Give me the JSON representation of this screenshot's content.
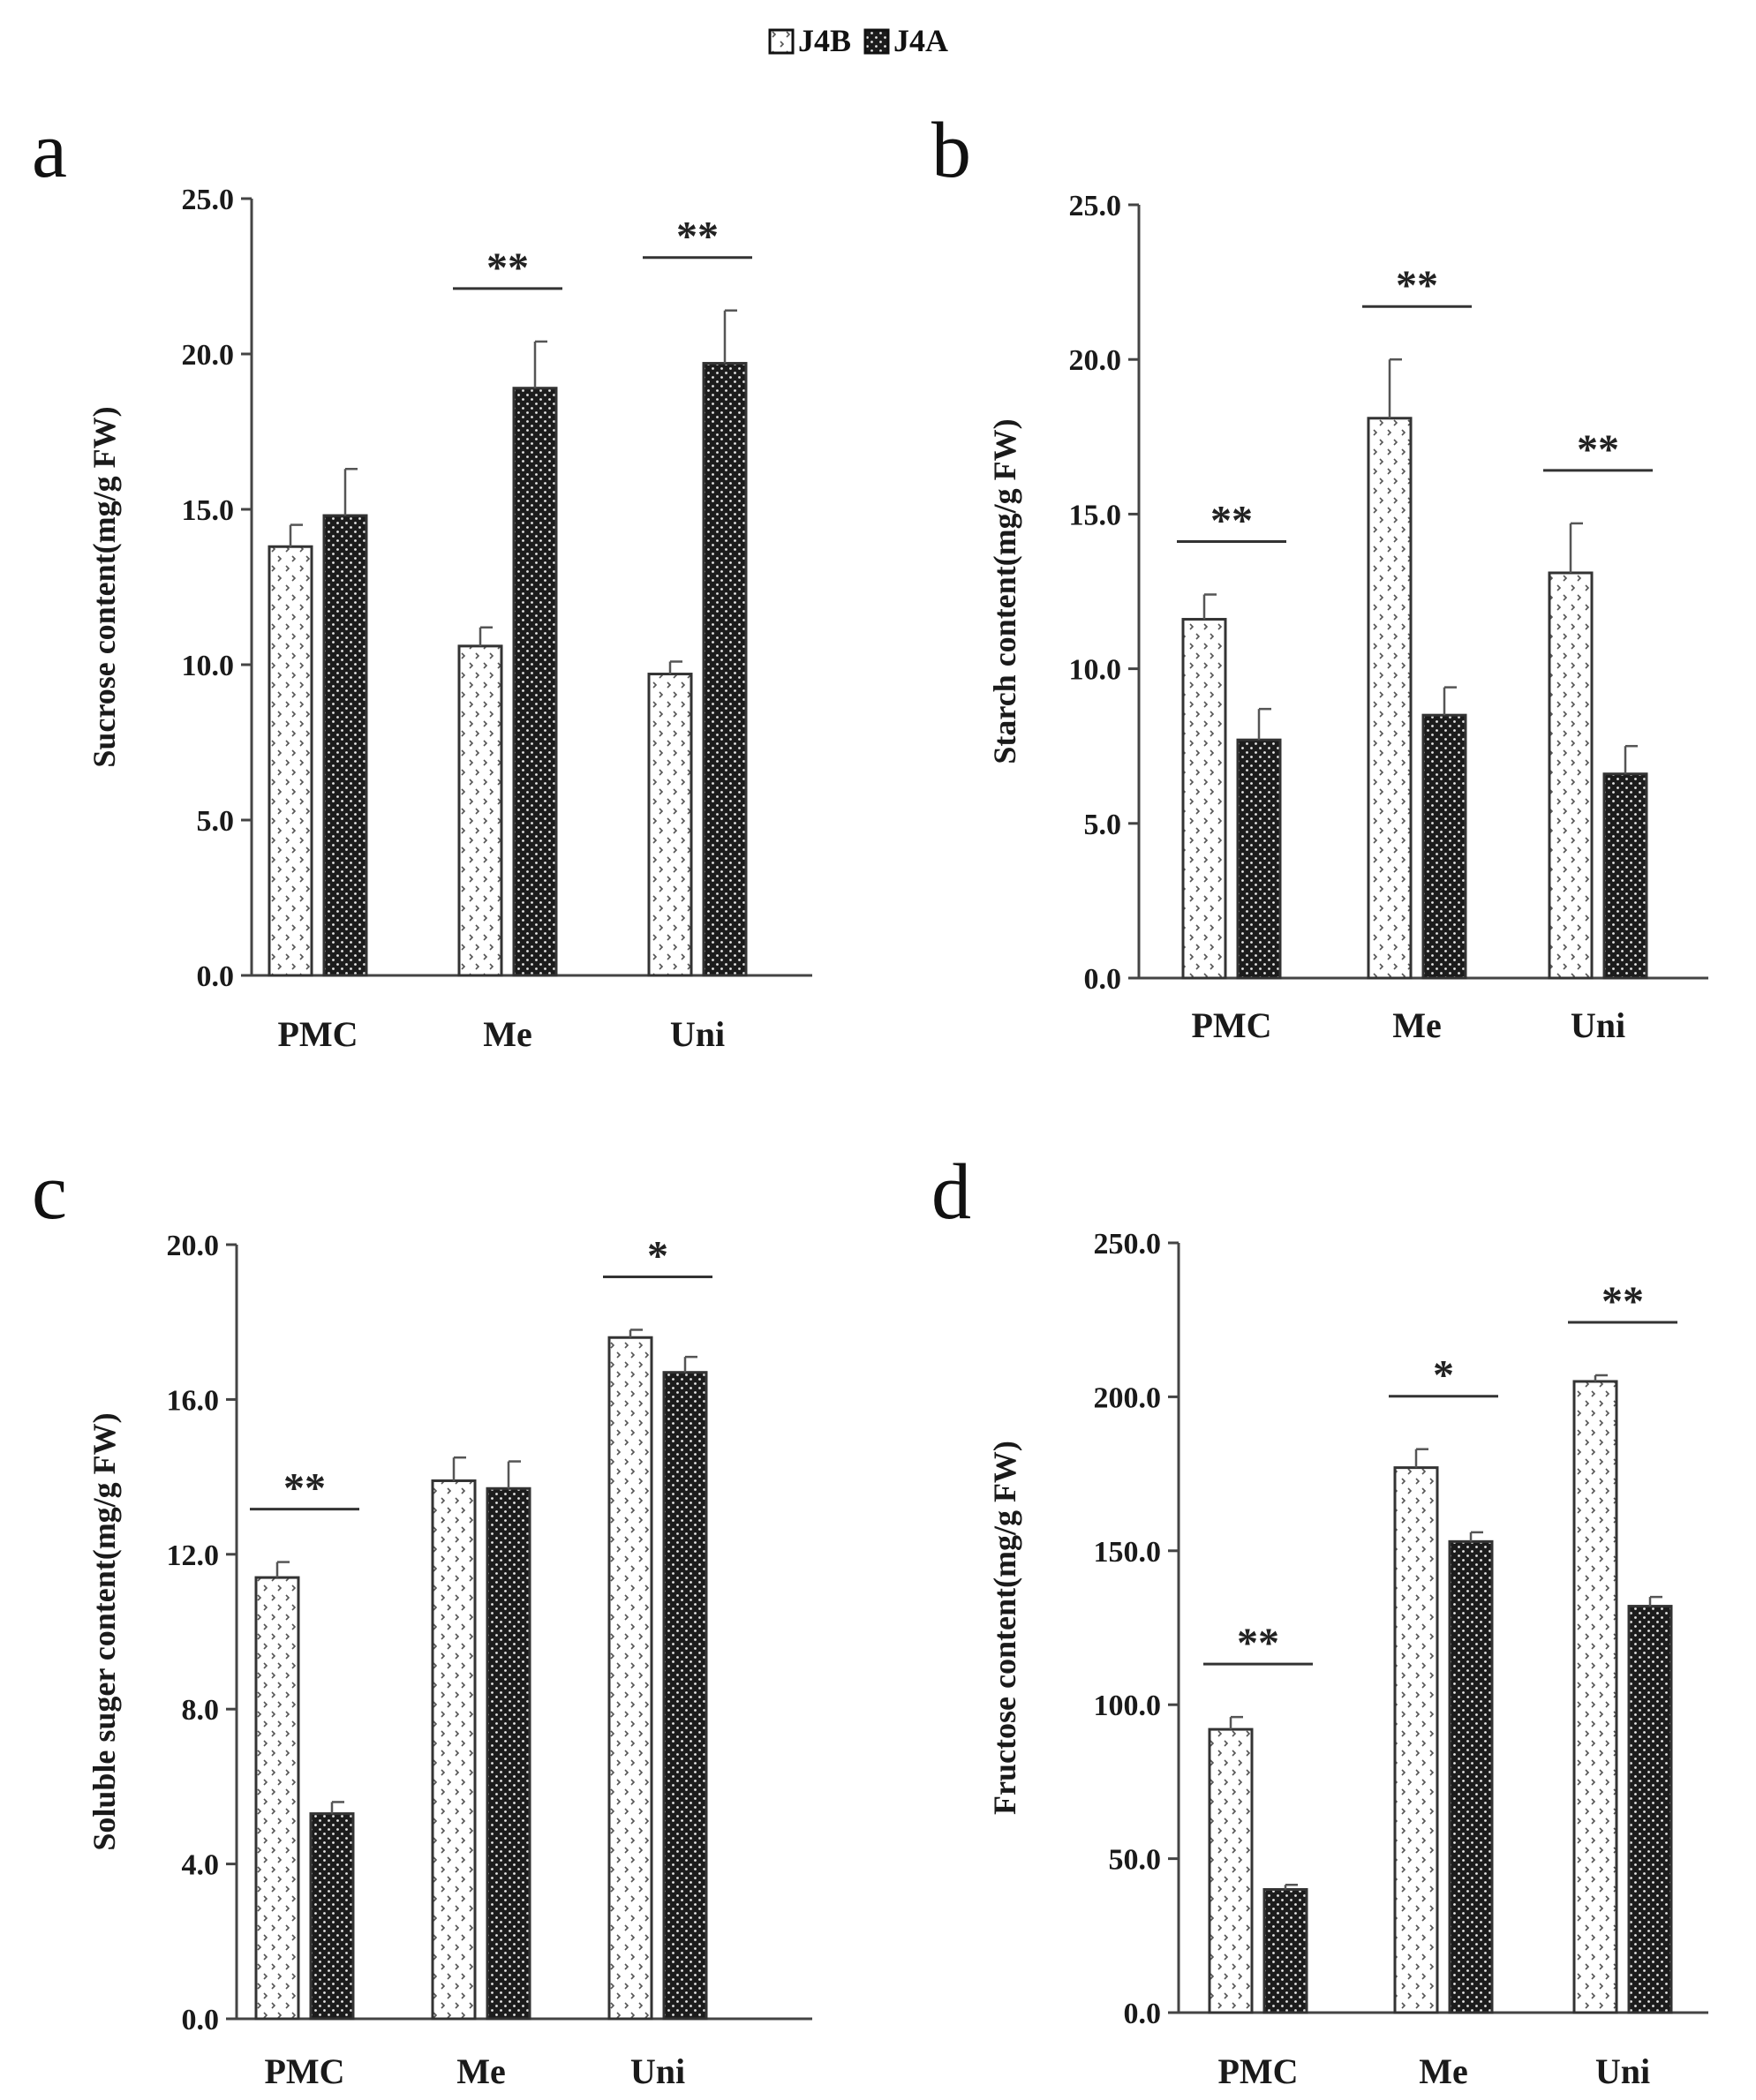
{
  "legend": {
    "position": "top-center",
    "series": [
      {
        "name": "J4B",
        "pattern": "light-dotted",
        "color": "#ffffff"
      },
      {
        "name": "J4A",
        "pattern": "dark-dotted",
        "color": "#222222"
      }
    ]
  },
  "colors": {
    "axis": "#444444",
    "text": "#1a1a1a",
    "bar_edge": "#333333",
    "dark_fill": "#1c1c1c"
  },
  "chart_data": [
    {
      "panel": "a",
      "type": "bar",
      "ylabel": "Sucrose content(mg/g FW)",
      "categories": [
        "PMC",
        "Me",
        "Uni"
      ],
      "ylim": [
        0,
        25
      ],
      "yticks": [
        "0.0",
        "5.0",
        "10.0",
        "15.0",
        "20.0",
        "25.0"
      ],
      "series": [
        {
          "name": "J4B",
          "values": [
            13.8,
            10.6,
            9.7
          ],
          "errors": [
            0.7,
            0.6,
            0.4
          ]
        },
        {
          "name": "J4A",
          "values": [
            14.8,
            18.9,
            19.7
          ],
          "errors": [
            1.5,
            1.5,
            1.7
          ]
        }
      ],
      "significance": [
        "",
        "**",
        "**"
      ]
    },
    {
      "panel": "b",
      "type": "bar",
      "ylabel": "Starch content(mg/g FW)",
      "categories": [
        "PMC",
        "Me",
        "Uni"
      ],
      "ylim": [
        0,
        25
      ],
      "yticks": [
        "0.0",
        "5.0",
        "10.0",
        "15.0",
        "20.0",
        "25.0"
      ],
      "series": [
        {
          "name": "J4B",
          "values": [
            11.6,
            18.1,
            13.1
          ],
          "errors": [
            0.8,
            1.9,
            1.6
          ]
        },
        {
          "name": "J4A",
          "values": [
            7.7,
            8.5,
            6.6
          ],
          "errors": [
            1.0,
            0.9,
            0.9
          ]
        }
      ],
      "significance": [
        "**",
        "**",
        "**"
      ]
    },
    {
      "panel": "c",
      "type": "bar",
      "ylabel": "Soluble suger content(mg/g FW)",
      "categories": [
        "PMC",
        "Me",
        "Uni"
      ],
      "ylim": [
        0,
        20
      ],
      "yticks": [
        "0.0",
        "4.0",
        "8.0",
        "12.0",
        "16.0",
        "20.0"
      ],
      "series": [
        {
          "name": "J4B",
          "values": [
            11.4,
            13.9,
            17.6
          ],
          "errors": [
            0.4,
            0.6,
            0.2
          ]
        },
        {
          "name": "J4A",
          "values": [
            5.3,
            13.7,
            16.7
          ],
          "errors": [
            0.3,
            0.7,
            0.4
          ]
        }
      ],
      "significance": [
        "**",
        "",
        "*"
      ]
    },
    {
      "panel": "d",
      "type": "bar",
      "ylabel": "Fructose content(mg/g FW)",
      "categories": [
        "PMC",
        "Me",
        "Uni"
      ],
      "ylim": [
        0,
        250
      ],
      "yticks": [
        "0.0",
        "50.0",
        "100.0",
        "150.0",
        "200.0",
        "250.0"
      ],
      "series": [
        {
          "name": "J4B",
          "values": [
            92,
            177,
            205
          ],
          "errors": [
            4,
            6,
            2
          ]
        },
        {
          "name": "J4A",
          "values": [
            40,
            153,
            132
          ],
          "errors": [
            1.5,
            3,
            3
          ]
        }
      ],
      "significance": [
        "**",
        "*",
        "**"
      ]
    }
  ]
}
